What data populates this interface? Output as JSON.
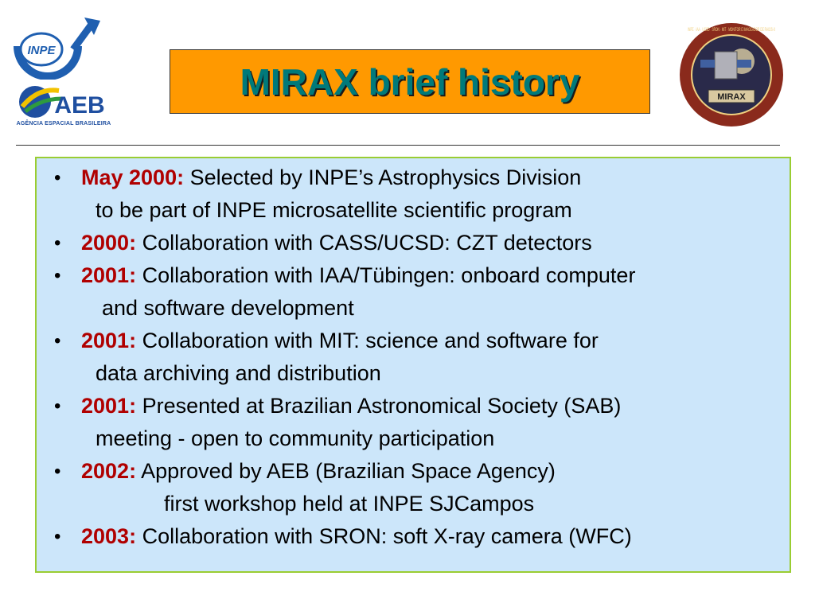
{
  "logos": {
    "inpe_text": "INPE",
    "aeb_text": "AEB",
    "aeb_caption": "AGÊNCIA ESPACIAL BRASILEIRA",
    "badge_text": "MIRAX",
    "badge_ring_text": "INPE · IAA · UCSD · SRON · MIT · MONITOR E IMAGEADOR DE RAIOS-X"
  },
  "header": {
    "title": "MIRAX brief history"
  },
  "colors": {
    "title_bg": "#ff9900",
    "title_text": "#007a7a",
    "year_text": "#b00000",
    "panel_bg": "#cce6fa",
    "panel_border": "#9acd32"
  },
  "history": {
    "bullet": "•",
    "items": [
      {
        "year": "May 2000:",
        "lines": [
          "Selected by INPE’s Astrophysics Division",
          "to be part of INPE microsatellite scientific program"
        ]
      },
      {
        "year": "2000:",
        "lines": [
          "Collaboration with CASS/UCSD: CZT detectors"
        ]
      },
      {
        "year": "2001:",
        "lines": [
          "Collaboration with IAA/Tübingen: onboard computer",
          "and software development"
        ]
      },
      {
        "year": "2001:",
        "lines": [
          "Collaboration with MIT: science and software for",
          "data archiving and distribution"
        ]
      },
      {
        "year": "2001:",
        "lines": [
          "Presented at Brazilian Astronomical Society (SAB)",
          "meeting - open to community participation"
        ]
      },
      {
        "year": "2002:",
        "lines": [
          "Approved by AEB (Brazilian Space Agency)",
          "first workshop held at INPE SJCampos"
        ]
      },
      {
        "year": "2003:",
        "lines": [
          "Collaboration with SRON: soft X-ray camera (WFC)"
        ]
      }
    ]
  }
}
